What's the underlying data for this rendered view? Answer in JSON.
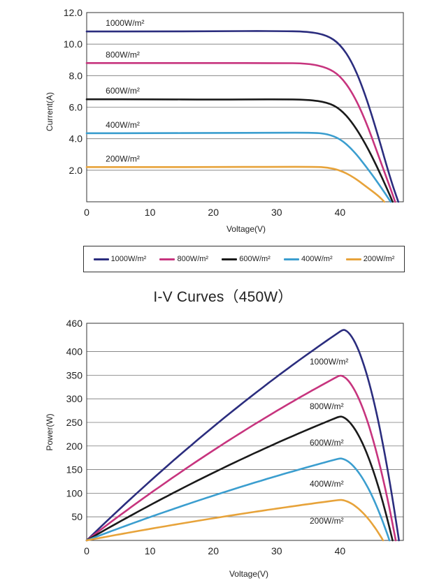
{
  "chart_data": [
    {
      "type": "line",
      "title": "",
      "xlabel": "Voltage(V)",
      "ylabel": "Current(A)",
      "xlim": [
        0,
        50
      ],
      "ylim": [
        0,
        12
      ],
      "x_ticks": [
        "0",
        "10",
        "20",
        "30",
        "40"
      ],
      "y_ticks": [
        "12.0",
        "10.0",
        "8.0",
        "6.0",
        "4.0",
        "2.0"
      ],
      "grid": "horizontal",
      "series": [
        {
          "name": "1000W/m²",
          "color": "#2b2d7e",
          "isc": 10.8,
          "voc": 49.2,
          "knee": 35.0,
          "x": [
            0,
            10,
            20,
            30,
            35,
            38,
            40,
            42,
            44,
            46,
            48,
            49.2
          ],
          "y": [
            10.8,
            10.8,
            10.82,
            10.83,
            10.8,
            10.55,
            10.0,
            8.8,
            6.8,
            4.2,
            1.4,
            0
          ]
        },
        {
          "name": "800W/m²",
          "color": "#c7347e",
          "isc": 8.8,
          "voc": 48.7,
          "knee": 35.0,
          "x": [
            0,
            10,
            20,
            30,
            35,
            38,
            40,
            42,
            44,
            46,
            48,
            48.7
          ],
          "y": [
            8.8,
            8.8,
            8.8,
            8.8,
            8.78,
            8.5,
            8.0,
            6.9,
            5.2,
            3.0,
            0.8,
            0
          ]
        },
        {
          "name": "600W/m²",
          "color": "#1a1a1a",
          "isc": 6.5,
          "voc": 48.3,
          "knee": 35.5,
          "x": [
            0,
            10,
            20,
            30,
            35,
            38,
            40,
            42,
            44,
            46,
            48,
            48.3
          ],
          "y": [
            6.5,
            6.5,
            6.48,
            6.5,
            6.48,
            6.3,
            5.9,
            5.0,
            3.7,
            2.1,
            0.3,
            0
          ]
        },
        {
          "name": "400W/m²",
          "color": "#3b9ecf",
          "isc": 4.35,
          "voc": 48.0,
          "knee": 37.0,
          "x": [
            0,
            10,
            20,
            30,
            36,
            38,
            40,
            42,
            44,
            46,
            48.0
          ],
          "y": [
            4.35,
            4.35,
            4.36,
            4.38,
            4.38,
            4.3,
            4.0,
            3.3,
            2.3,
            1.2,
            0
          ]
        },
        {
          "name": "200W/m²",
          "color": "#e7a33a",
          "isc": 2.2,
          "voc": 47.0,
          "knee": 37.0,
          "x": [
            0,
            10,
            20,
            30,
            36,
            38,
            40,
            42,
            44,
            46,
            47.0
          ],
          "y": [
            2.2,
            2.2,
            2.2,
            2.22,
            2.22,
            2.18,
            2.0,
            1.6,
            1.0,
            0.4,
            0
          ]
        }
      ],
      "annotations": [
        "1000W/m²",
        "800W/m²",
        "600W/m²",
        "400W/m²",
        "200W/m²"
      ]
    },
    {
      "type": "line",
      "title": "",
      "xlabel": "Voltage(V)",
      "ylabel": "Power(W)",
      "xlim": [
        0,
        50
      ],
      "ylim": [
        0,
        460
      ],
      "x_ticks": [
        "0",
        "10",
        "20",
        "30",
        "40"
      ],
      "y_ticks": [
        "460",
        "400",
        "350",
        "300",
        "250",
        "200",
        "150",
        "100",
        "50"
      ],
      "grid": "horizontal",
      "series": [
        {
          "name": "1000W/m²",
          "color": "#2b2d7e",
          "pmax": 447,
          "vmp": 40.5,
          "voc": 49.3
        },
        {
          "name": "800W/m²",
          "color": "#c7347e",
          "pmax": 350,
          "vmp": 40.0,
          "voc": 48.8
        },
        {
          "name": "600W/m²",
          "color": "#1a1a1a",
          "pmax": 263,
          "vmp": 40.0,
          "voc": 48.3
        },
        {
          "name": "400W/m²",
          "color": "#3b9ecf",
          "pmax": 174,
          "vmp": 40.0,
          "voc": 47.8
        },
        {
          "name": "200W/m²",
          "color": "#e7a33a",
          "pmax": 86,
          "vmp": 40.0,
          "voc": 46.8
        }
      ],
      "annotations": [
        "1000W/m²",
        "800W/m²",
        "600W/m²",
        "400W/m²",
        "200W/m²"
      ]
    }
  ],
  "legend": {
    "items": [
      {
        "label": "1000W/m²",
        "color": "#2b2d7e"
      },
      {
        "label": "800W/m²",
        "color": "#c7347e"
      },
      {
        "label": "600W/m²",
        "color": "#1a1a1a"
      },
      {
        "label": "400W/m²",
        "color": "#3b9ecf"
      },
      {
        "label": "200W/m²",
        "color": "#e7a33a"
      }
    ]
  },
  "middle_title": "I-V Curves（450W）"
}
